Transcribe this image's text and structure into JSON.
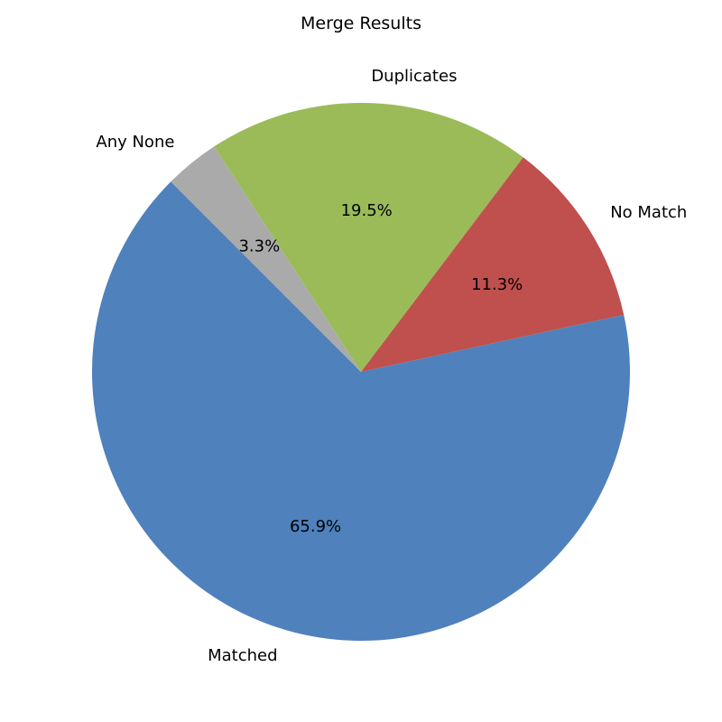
{
  "chart_data": {
    "type": "pie",
    "title": "Merge Results",
    "start_angle": 135,
    "direction": "counterclockwise",
    "slices": [
      {
        "label": "Matched",
        "value": 65.9,
        "pct_label": "65.9%",
        "color": "#4f81bd"
      },
      {
        "label": "No Match",
        "value": 11.3,
        "pct_label": "11.3%",
        "color": "#c0504d"
      },
      {
        "label": "Duplicates",
        "value": 19.5,
        "pct_label": "19.5%",
        "color": "#9bbb59"
      },
      {
        "label": "Any None",
        "value": 3.3,
        "pct_label": "3.3%",
        "color": "#aaaaaa"
      }
    ]
  }
}
